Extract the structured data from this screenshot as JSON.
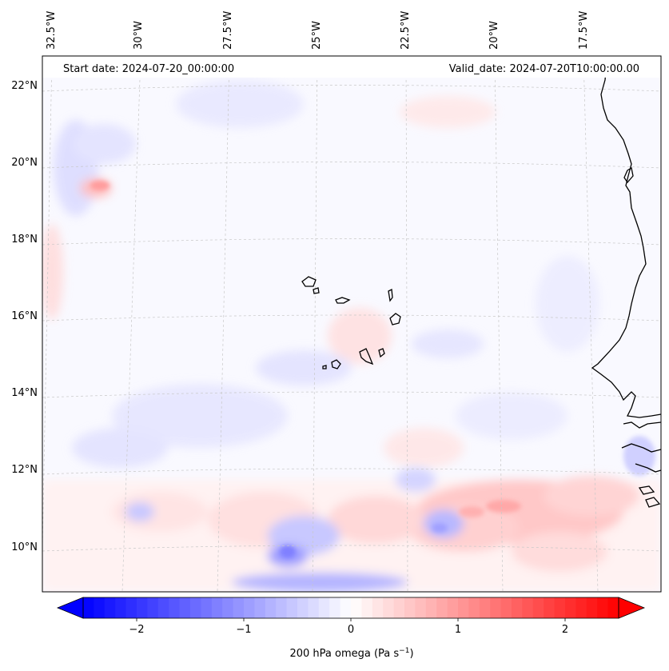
{
  "map": {
    "start_label": "Start date: 2024-07-20_00:00:00",
    "valid_label": "Valid_date: 2024-07-20T10:00:00.00",
    "lon_labels": [
      "32.5°W",
      "30°W",
      "27.5°W",
      "25°W",
      "22.5°W",
      "20°W",
      "17.5°W"
    ],
    "lat_labels": [
      "22°N",
      "20°N",
      "18°N",
      "16°N",
      "14°N",
      "12°N",
      "10°N"
    ],
    "coast_color": "#000000",
    "grid_color": "#c8c8c8"
  },
  "colorbar": {
    "label": "200 hPa omega (Pa s",
    "label_sup": "−1",
    "label_close": ")",
    "ticks": [
      "−2",
      "−1",
      "0",
      "1",
      "2"
    ],
    "tick_values": [
      -2,
      -1,
      0,
      1,
      2
    ],
    "range": [
      -2.5,
      2.5
    ],
    "cmap": "bwr",
    "extend": "both",
    "color_min": "#0000ff",
    "color_mid": "#ffffff",
    "color_max": "#ff0000"
  }
}
